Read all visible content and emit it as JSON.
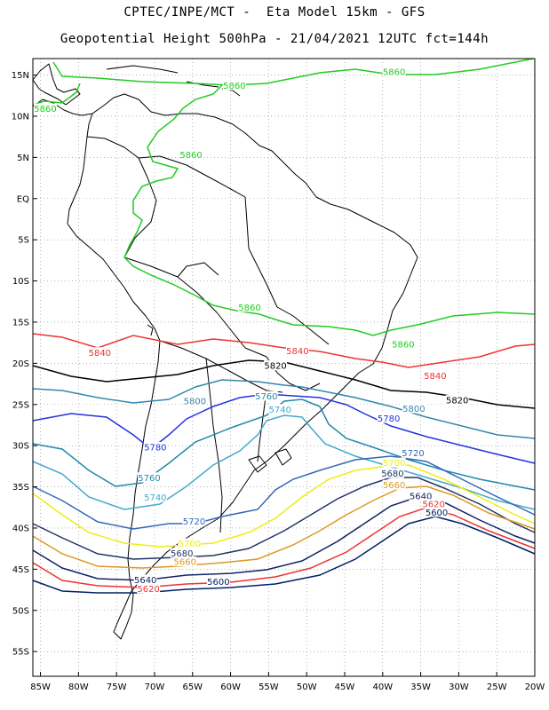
{
  "header": {
    "line1": "CPTEC/INPE/MCT -  Eta Model 15km - GFS",
    "line2": "Geopotential Height 500hPa - 21/04/2021 12UTC fct=144h"
  },
  "axes": {
    "lat_labels": [
      "15N",
      "10N",
      "5N",
      "EQ",
      "5S",
      "10S",
      "15S",
      "20S",
      "25S",
      "30S",
      "35S",
      "40S",
      "45S",
      "50S",
      "55S"
    ],
    "lat_values": [
      15,
      10,
      5,
      0,
      -5,
      -10,
      -15,
      -20,
      -25,
      -30,
      -35,
      -40,
      -45,
      -50,
      -55
    ],
    "lon_labels": [
      "85W",
      "80W",
      "75W",
      "70W",
      "65W",
      "60W",
      "55W",
      "50W",
      "45W",
      "40W",
      "35W",
      "30W",
      "25W",
      "20W"
    ],
    "lon_values": [
      -85,
      -80,
      -75,
      -70,
      -65,
      -60,
      -55,
      -50,
      -45,
      -40,
      -35,
      -30,
      -25,
      -20
    ],
    "lon_range": [
      -86,
      -20
    ],
    "lat_range": [
      -58,
      17
    ],
    "grid": "dotted"
  },
  "colors": {
    "c5860": "#22cc22",
    "c5840": "#ee3333",
    "c5820": "#000000",
    "c5800": "#3388aa",
    "c5780": "#2233dd",
    "c5760": "#2288aa",
    "c5740": "#44aacc",
    "c5720": "#3366bb",
    "c5700": "#eeee11",
    "c5680": "#223366",
    "c5660": "#dd9922",
    "c5640": "#112266",
    "c5620": "#ee3333",
    "c5600": "#002266"
  },
  "contour_labels": [
    {
      "text": "5860",
      "lon": -59.5,
      "lat": 13.7,
      "color": "c5860"
    },
    {
      "text": "5860",
      "lon": -86.3,
      "lat": 10.9,
      "color": "c5860"
    },
    {
      "text": "5860",
      "lon": -65.2,
      "lat": 5.3,
      "color": "c5860"
    },
    {
      "text": "5860",
      "lon": -38.5,
      "lat": 15.4,
      "color": "c5860"
    },
    {
      "text": "5860",
      "lon": -57.5,
      "lat": -13.2,
      "color": "c5860"
    },
    {
      "text": "5860",
      "lon": -37.3,
      "lat": -17.7,
      "color": "c5860"
    },
    {
      "text": "5840",
      "lon": -77.2,
      "lat": -18.7,
      "color": "c5840"
    },
    {
      "text": "5840",
      "lon": -51.2,
      "lat": -18.5,
      "color": "c5840"
    },
    {
      "text": "5840",
      "lon": -33.1,
      "lat": -21.5,
      "color": "c5840"
    },
    {
      "text": "5820",
      "lon": -54.1,
      "lat": -20.3,
      "color": "c5820"
    },
    {
      "text": "5820",
      "lon": -30.2,
      "lat": -24.5,
      "color": "c5820"
    },
    {
      "text": "5800",
      "lon": -64.7,
      "lat": -24.6,
      "color": "c5800"
    },
    {
      "text": "5800",
      "lon": -35.9,
      "lat": -25.5,
      "color": "c5800"
    },
    {
      "text": "5780",
      "lon": -39.2,
      "lat": -26.7,
      "color": "c5780"
    },
    {
      "text": "5780",
      "lon": -69.9,
      "lat": -30.2,
      "color": "c5780"
    },
    {
      "text": "5760",
      "lon": -55.3,
      "lat": -24.0,
      "color": "c5760"
    },
    {
      "text": "5760",
      "lon": -70.7,
      "lat": -33.9,
      "color": "c5760"
    },
    {
      "text": "5740",
      "lon": -53.5,
      "lat": -25.6,
      "color": "c5740"
    },
    {
      "text": "5740",
      "lon": -69.9,
      "lat": -36.3,
      "color": "c5740"
    },
    {
      "text": "5720",
      "lon": -36.0,
      "lat": -30.9,
      "color": "c5720"
    },
    {
      "text": "5720",
      "lon": -64.8,
      "lat": -39.2,
      "color": "c5720"
    },
    {
      "text": "5700",
      "lon": -38.5,
      "lat": -32.1,
      "color": "c5700"
    },
    {
      "text": "5700",
      "lon": -65.4,
      "lat": -41.9,
      "color": "c5700"
    },
    {
      "text": "5680",
      "lon": -38.7,
      "lat": -33.4,
      "color": "c5680"
    },
    {
      "text": "5680",
      "lon": -66.4,
      "lat": -43.1,
      "color": "c5680"
    },
    {
      "text": "5660",
      "lon": -38.5,
      "lat": -34.8,
      "color": "c5660"
    },
    {
      "text": "5660",
      "lon": -66.0,
      "lat": -44.1,
      "color": "c5660"
    },
    {
      "text": "5640",
      "lon": -35.0,
      "lat": -36.1,
      "color": "c5640"
    },
    {
      "text": "5640",
      "lon": -71.2,
      "lat": -46.3,
      "color": "c5640"
    },
    {
      "text": "5620",
      "lon": -33.3,
      "lat": -37.1,
      "color": "c5620"
    },
    {
      "text": "5620",
      "lon": -70.8,
      "lat": -47.4,
      "color": "c5620"
    },
    {
      "text": "5600",
      "lon": -32.9,
      "lat": -38.1,
      "color": "c5600"
    },
    {
      "text": "5600",
      "lon": -61.6,
      "lat": -46.5,
      "color": "c5600"
    }
  ]
}
